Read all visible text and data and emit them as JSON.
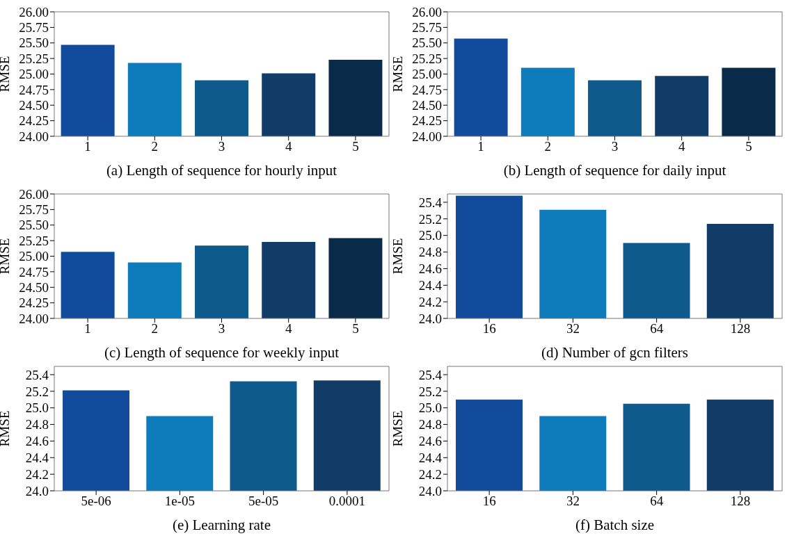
{
  "chart_data": [
    {
      "type": "bar",
      "xlabel": "(a) Length of sequence for hourly input",
      "ylabel": "RMSE",
      "categories": [
        "1",
        "2",
        "3",
        "4",
        "5"
      ],
      "values": [
        25.47,
        25.18,
        24.9,
        25.01,
        25.23
      ],
      "colors": [
        "#134b9c",
        "#0e7bbb",
        "#0f5a8c",
        "#113c68",
        "#0a2a4a"
      ],
      "ylim": [
        24,
        26
      ],
      "yticks": [
        {
          "value": 24,
          "label": "24.00"
        },
        {
          "value": 24.25,
          "label": "24.25"
        },
        {
          "value": 24.5,
          "label": "24.50"
        },
        {
          "value": 24.75,
          "label": "24.75"
        },
        {
          "value": 25,
          "label": "25.00"
        },
        {
          "value": 25.25,
          "label": "25.25"
        },
        {
          "value": 25.5,
          "label": "25.50"
        },
        {
          "value": 25.75,
          "label": "25.75"
        },
        {
          "value": 26,
          "label": "26.00"
        }
      ]
    },
    {
      "type": "bar",
      "xlabel": "(b) Length of sequence for daily input",
      "ylabel": "RMSE",
      "categories": [
        "1",
        "2",
        "3",
        "4",
        "5"
      ],
      "values": [
        25.57,
        25.1,
        24.9,
        24.97,
        25.1
      ],
      "colors": [
        "#134b9c",
        "#0e7bbb",
        "#0f5a8c",
        "#113c68",
        "#0a2a4a"
      ],
      "ylim": [
        24,
        26
      ],
      "yticks": [
        {
          "value": 24,
          "label": "24.00"
        },
        {
          "value": 24.25,
          "label": "24.25"
        },
        {
          "value": 24.5,
          "label": "24.50"
        },
        {
          "value": 24.75,
          "label": "24.75"
        },
        {
          "value": 25,
          "label": "25.00"
        },
        {
          "value": 25.25,
          "label": "25.25"
        },
        {
          "value": 25.5,
          "label": "25.50"
        },
        {
          "value": 25.75,
          "label": "25.75"
        },
        {
          "value": 26,
          "label": "26.00"
        }
      ]
    },
    {
      "type": "bar",
      "xlabel": "(c) Length of sequence for weekly input",
      "ylabel": "RMSE",
      "categories": [
        "1",
        "2",
        "3",
        "4",
        "5"
      ],
      "values": [
        25.07,
        24.9,
        25.17,
        25.23,
        25.29
      ],
      "colors": [
        "#134b9c",
        "#0e7bbb",
        "#0f5a8c",
        "#113c68",
        "#0a2a4a"
      ],
      "ylim": [
        24,
        26
      ],
      "yticks": [
        {
          "value": 24,
          "label": "24.00"
        },
        {
          "value": 24.25,
          "label": "24.25"
        },
        {
          "value": 24.5,
          "label": "24.50"
        },
        {
          "value": 24.75,
          "label": "24.75"
        },
        {
          "value": 25,
          "label": "25.00"
        },
        {
          "value": 25.25,
          "label": "25.25"
        },
        {
          "value": 25.5,
          "label": "25.50"
        },
        {
          "value": 25.75,
          "label": "25.75"
        },
        {
          "value": 26,
          "label": "26.00"
        }
      ]
    },
    {
      "type": "bar",
      "xlabel": "(d) Number of gcn filters",
      "ylabel": "RMSE",
      "categories": [
        "16",
        "32",
        "64",
        "128"
      ],
      "values": [
        25.48,
        25.31,
        24.91,
        25.14
      ],
      "colors": [
        "#134b9c",
        "#0e7bbb",
        "#0f5a8c",
        "#113c68"
      ],
      "ylim": [
        24,
        25.5
      ],
      "yticks": [
        {
          "value": 24,
          "label": "24.0"
        },
        24.2,
        24.4,
        24.6,
        24.8,
        {
          "value": 25,
          "label": "25.0"
        },
        25.2,
        25.4
      ]
    },
    {
      "type": "bar",
      "xlabel": "(e) Learning rate",
      "ylabel": "RMSE",
      "categories": [
        "5e-06",
        "1e-05",
        "5e-05",
        "0.0001"
      ],
      "values": [
        25.21,
        24.9,
        25.32,
        25.33
      ],
      "colors": [
        "#134b9c",
        "#0e7bbb",
        "#0f5a8c",
        "#113c68"
      ],
      "ylim": [
        24,
        25.5
      ],
      "yticks": [
        {
          "value": 24,
          "label": "24.0"
        },
        24.2,
        24.4,
        24.6,
        24.8,
        {
          "value": 25,
          "label": "25.0"
        },
        25.2,
        25.4
      ]
    },
    {
      "type": "bar",
      "xlabel": "(f) Batch size",
      "ylabel": "RMSE",
      "categories": [
        "16",
        "32",
        "64",
        "128"
      ],
      "values": [
        25.1,
        24.9,
        25.05,
        25.1
      ],
      "colors": [
        "#134b9c",
        "#0e7bbb",
        "#0f5a8c",
        "#113c68"
      ],
      "ylim": [
        24,
        25.5
      ],
      "yticks": [
        {
          "value": 24,
          "label": "24.0"
        },
        24.2,
        24.4,
        24.6,
        24.8,
        {
          "value": 25,
          "label": "25.0"
        },
        25.2,
        25.4
      ]
    }
  ]
}
